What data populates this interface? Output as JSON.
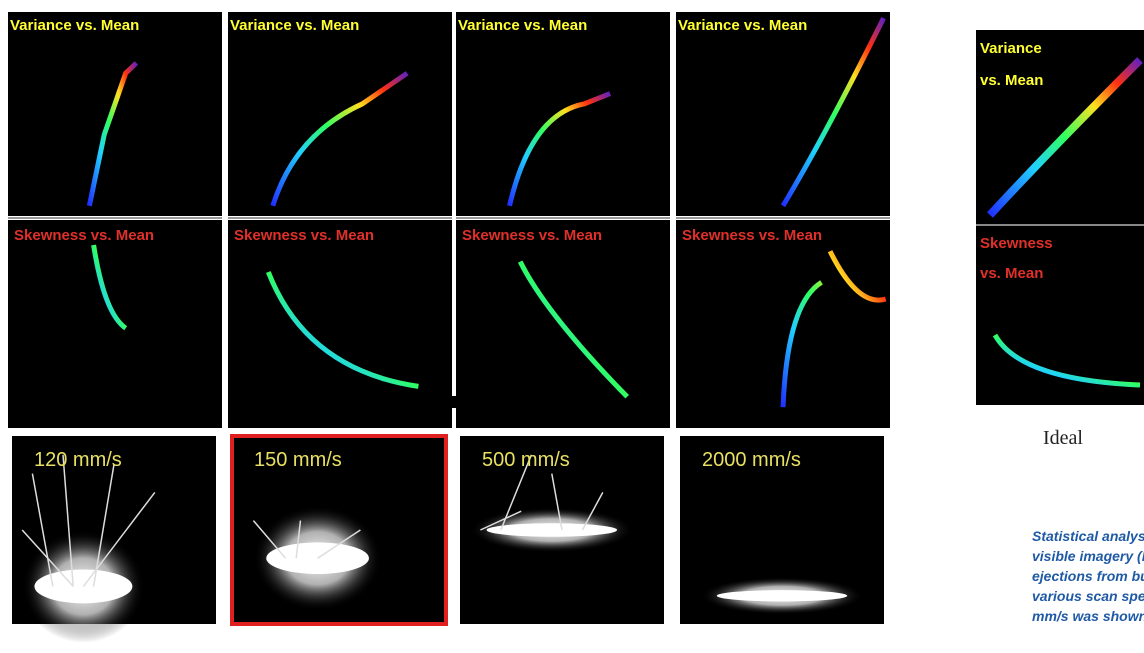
{
  "panels": [
    {
      "variance": "Variance vs. Mean",
      "skewness": "Skewness vs. Mean",
      "speed": "120 mm/s"
    },
    {
      "variance": "Variance vs. Mean",
      "skewness": "Skewness vs. Mean",
      "speed": "150 mm/s"
    },
    {
      "variance": "Variance vs. Mean",
      "skewness": "Skewness vs. Mean",
      "speed": "500 mm/s"
    },
    {
      "variance": "Variance vs. Mean",
      "skewness": "Skewness vs. Mean",
      "speed": "2000 mm/s"
    }
  ],
  "ideal": {
    "variance": [
      "Variance",
      "vs. Mean"
    ],
    "skewness": [
      "Skewness",
      "vs. Mean"
    ],
    "label": "Ideal"
  },
  "caption": {
    "lines": [
      "Statistical analysis (top t",
      "visible imagery (bottom",
      "ejections from build are",
      "various scan speeds. A la",
      "mm/s was shown to be c"
    ]
  }
}
